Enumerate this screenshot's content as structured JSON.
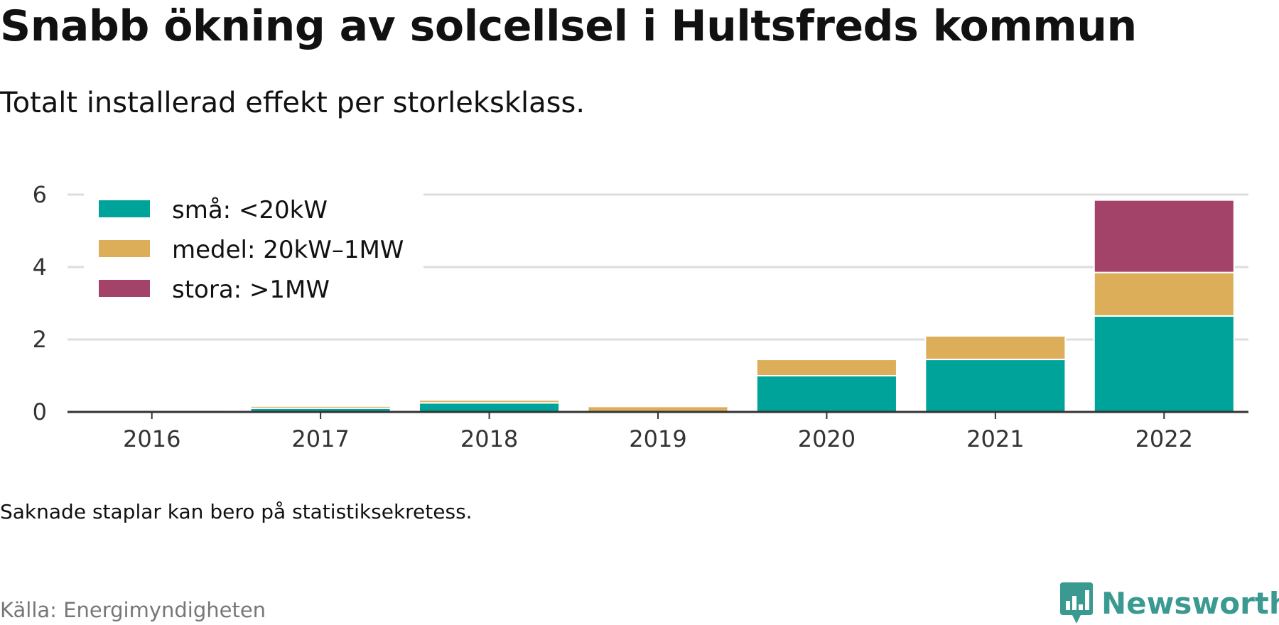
{
  "title": "Snabb ökning av solcellsel i Hultsfreds kommun",
  "subtitle": "Totalt installerad effekt per storleksklass.",
  "note": "Saknade staplar kan bero på statistiksekretess.",
  "source": "Källa: Energimyndigheten",
  "brand": {
    "name": "Newsworthy",
    "icon": "newsworthy-logo-icon",
    "color": "#3a9a92"
  },
  "chart_data": {
    "type": "bar",
    "stacked": true,
    "title": "",
    "xlabel": "",
    "ylabel": "",
    "categories": [
      "2016",
      "2017",
      "2018",
      "2019",
      "2020",
      "2021",
      "2022"
    ],
    "ylim": [
      0,
      6
    ],
    "yticks": [
      0,
      2,
      4,
      6
    ],
    "grid": true,
    "legend_position": "top-left",
    "series": [
      {
        "name": "små: <20kW",
        "color": "#00a39a",
        "values": [
          0.05,
          0.1,
          0.25,
          0.0,
          1.0,
          1.45,
          2.65
        ]
      },
      {
        "name": "medel: 20kW–1MW",
        "color": "#ddae5a",
        "values": [
          0.0,
          0.06,
          0.08,
          0.15,
          0.45,
          0.65,
          1.2
        ]
      },
      {
        "name": "stora: >1MW",
        "color": "#a4436a",
        "values": [
          0.0,
          0.0,
          0.0,
          0.0,
          0.0,
          0.0,
          2.0
        ]
      }
    ]
  }
}
